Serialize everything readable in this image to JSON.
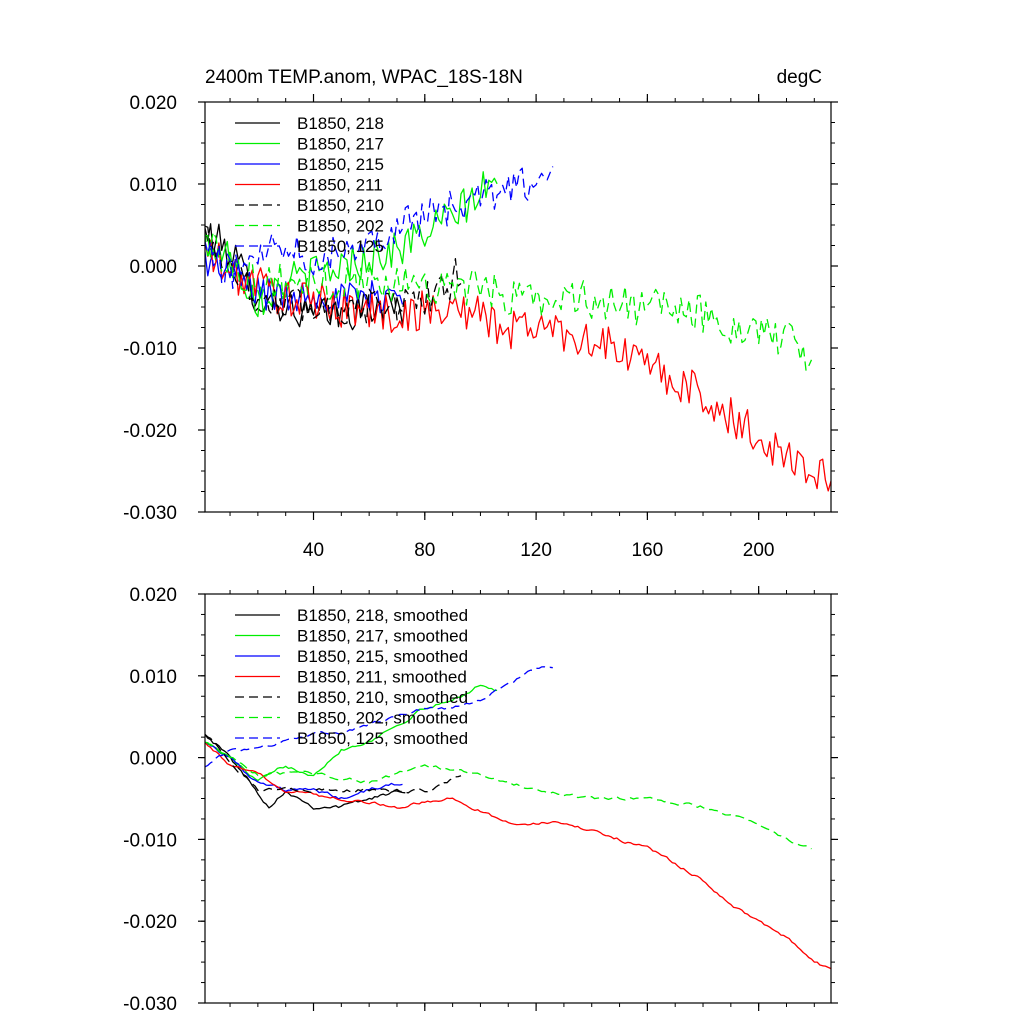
{
  "chart_data": [
    {
      "type": "line",
      "title": "2400m TEMP.anom, WPAC_18S-18N",
      "units": "degC",
      "xlabel": "",
      "ylabel": "",
      "xlim": [
        1,
        226
      ],
      "ylim": [
        -0.03,
        0.02
      ],
      "xticks": [
        40,
        80,
        120,
        160,
        200
      ],
      "xtick_labels": [
        "40",
        "80",
        "120",
        "160",
        "200"
      ],
      "yticks": [
        0.02,
        0.01,
        0.0,
        -0.01,
        -0.02,
        -0.03
      ],
      "ytick_labels": [
        "0.020",
        "0.010",
        "0.000",
        "-0.010",
        "-0.020",
        "-0.030"
      ],
      "legend_position": "top-left",
      "series": [
        {
          "name": "B1850, 218",
          "color": "#000000",
          "dash": "solid",
          "smoothed": false,
          "noise": 0.0022,
          "anchors": [
            [
              1,
              0.004
            ],
            [
              10,
              0.002
            ],
            [
              20,
              -0.004
            ],
            [
              30,
              -0.005
            ],
            [
              40,
              -0.006
            ],
            [
              50,
              -0.006
            ],
            [
              60,
              -0.005
            ],
            [
              73,
              -0.005
            ]
          ]
        },
        {
          "name": "B1850, 217",
          "color": "#00ee00",
          "dash": "solid",
          "smoothed": false,
          "noise": 0.0024,
          "anchors": [
            [
              1,
              0.003
            ],
            [
              10,
              0.001
            ],
            [
              20,
              -0.004
            ],
            [
              30,
              -0.002
            ],
            [
              40,
              -0.001
            ],
            [
              50,
              0.0
            ],
            [
              60,
              0.001
            ],
            [
              70,
              0.002
            ],
            [
              80,
              0.004
            ],
            [
              90,
              0.006
            ],
            [
              100,
              0.009
            ],
            [
              106,
              0.01
            ]
          ]
        },
        {
          "name": "B1850, 215",
          "color": "#0000ff",
          "dash": "solid",
          "smoothed": false,
          "noise": 0.0022,
          "anchors": [
            [
              1,
              0.001
            ],
            [
              10,
              -0.001
            ],
            [
              20,
              -0.003
            ],
            [
              30,
              -0.004
            ],
            [
              40,
              -0.003
            ],
            [
              50,
              -0.004
            ],
            [
              60,
              -0.004
            ],
            [
              72,
              -0.003
            ]
          ]
        },
        {
          "name": "B1850, 211",
          "color": "#ff0000",
          "dash": "solid",
          "smoothed": false,
          "noise": 0.0025,
          "anchors": [
            [
              1,
              0.002
            ],
            [
              10,
              -0.001
            ],
            [
              20,
              -0.002
            ],
            [
              30,
              -0.004
            ],
            [
              50,
              -0.005
            ],
            [
              70,
              -0.006
            ],
            [
              90,
              -0.005
            ],
            [
              100,
              -0.006
            ],
            [
              110,
              -0.008
            ],
            [
              120,
              -0.007
            ],
            [
              140,
              -0.009
            ],
            [
              160,
              -0.012
            ],
            [
              180,
              -0.016
            ],
            [
              200,
              -0.021
            ],
            [
              210,
              -0.023
            ],
            [
              220,
              -0.025
            ],
            [
              226,
              -0.027
            ]
          ]
        },
        {
          "name": "B1850, 210",
          "color": "#000000",
          "dash": "dashed",
          "smoothed": false,
          "noise": 0.0022,
          "anchors": [
            [
              1,
              0.004
            ],
            [
              20,
              -0.004
            ],
            [
              40,
              -0.005
            ],
            [
              60,
              -0.005
            ],
            [
              80,
              -0.004
            ],
            [
              88,
              -0.003
            ],
            [
              93,
              0.0
            ]
          ]
        },
        {
          "name": "B1850, 202",
          "color": "#00ee00",
          "dash": "dashed",
          "smoothed": false,
          "noise": 0.0024,
          "anchors": [
            [
              1,
              0.003
            ],
            [
              20,
              -0.002
            ],
            [
              40,
              -0.002
            ],
            [
              60,
              -0.002
            ],
            [
              80,
              -0.002
            ],
            [
              100,
              -0.003
            ],
            [
              120,
              -0.004
            ],
            [
              140,
              -0.004
            ],
            [
              160,
              -0.005
            ],
            [
              180,
              -0.006
            ],
            [
              200,
              -0.008
            ],
            [
              210,
              -0.009
            ],
            [
              219,
              -0.012
            ]
          ]
        },
        {
          "name": "B1850, 125",
          "color": "#0000ff",
          "dash": "dashed",
          "smoothed": false,
          "noise": 0.0022,
          "anchors": [
            [
              1,
              0.002
            ],
            [
              10,
              -0.001
            ],
            [
              20,
              0.002
            ],
            [
              30,
              0.003
            ],
            [
              40,
              0.001
            ],
            [
              50,
              0.002
            ],
            [
              60,
              0.003
            ],
            [
              70,
              0.005
            ],
            [
              80,
              0.006
            ],
            [
              90,
              0.007
            ],
            [
              100,
              0.008
            ],
            [
              110,
              0.01
            ],
            [
              120,
              0.01
            ],
            [
              126,
              0.011
            ]
          ]
        }
      ]
    },
    {
      "type": "line",
      "title": "",
      "units": "",
      "xlabel": "",
      "ylabel": "",
      "xlim": [
        1,
        226
      ],
      "ylim": [
        -0.03,
        0.02
      ],
      "xticks": [
        40,
        80,
        120,
        160,
        200
      ],
      "xtick_labels": [],
      "yticks": [
        0.02,
        0.01,
        0.0,
        -0.01,
        -0.02,
        -0.03
      ],
      "ytick_labels": [
        "0.020",
        "0.010",
        "0.000",
        "-0.010",
        "-0.020",
        "-0.030"
      ],
      "legend_position": "top-left",
      "series": [
        {
          "name": "B1850, 218, smoothed",
          "color": "#000000",
          "dash": "solid",
          "smoothed": true,
          "noise": 0.0005,
          "anchors": [
            [
              1,
              0.003
            ],
            [
              10,
              0.0
            ],
            [
              24,
              -0.006
            ],
            [
              30,
              -0.004
            ],
            [
              40,
              -0.006
            ],
            [
              50,
              -0.006
            ],
            [
              60,
              -0.005
            ],
            [
              73,
              -0.004
            ]
          ]
        },
        {
          "name": "B1850, 217, smoothed",
          "color": "#00ee00",
          "dash": "solid",
          "smoothed": true,
          "noise": 0.0005,
          "anchors": [
            [
              1,
              0.002
            ],
            [
              10,
              0.0
            ],
            [
              20,
              -0.003
            ],
            [
              30,
              -0.001
            ],
            [
              40,
              -0.002
            ],
            [
              50,
              0.001
            ],
            [
              60,
              0.002
            ],
            [
              70,
              0.004
            ],
            [
              80,
              0.006
            ],
            [
              90,
              0.007
            ],
            [
              100,
              0.009
            ],
            [
              106,
              0.008
            ]
          ]
        },
        {
          "name": "B1850, 215, smoothed",
          "color": "#0000ff",
          "dash": "solid",
          "smoothed": true,
          "noise": 0.0005,
          "anchors": [
            [
              1,
              0.002
            ],
            [
              10,
              0.0
            ],
            [
              20,
              -0.003
            ],
            [
              30,
              -0.004
            ],
            [
              40,
              -0.004
            ],
            [
              50,
              -0.005
            ],
            [
              60,
              -0.004
            ],
            [
              72,
              -0.003
            ]
          ]
        },
        {
          "name": "B1850, 211, smoothed",
          "color": "#ff0000",
          "dash": "solid",
          "smoothed": true,
          "noise": 0.0004,
          "anchors": [
            [
              1,
              0.002
            ],
            [
              10,
              -0.001
            ],
            [
              20,
              -0.002
            ],
            [
              30,
              -0.004
            ],
            [
              50,
              -0.005
            ],
            [
              70,
              -0.006
            ],
            [
              90,
              -0.005
            ],
            [
              110,
              -0.008
            ],
            [
              130,
              -0.008
            ],
            [
              150,
              -0.01
            ],
            [
              160,
              -0.011
            ],
            [
              180,
              -0.015
            ],
            [
              190,
              -0.018
            ],
            [
              200,
              -0.02
            ],
            [
              210,
              -0.022
            ],
            [
              220,
              -0.025
            ],
            [
              226,
              -0.026
            ]
          ]
        },
        {
          "name": "B1850, 210, smoothed",
          "color": "#000000",
          "dash": "dashed",
          "smoothed": true,
          "noise": 0.0005,
          "anchors": [
            [
              1,
              0.003
            ],
            [
              20,
              -0.004
            ],
            [
              40,
              -0.004
            ],
            [
              60,
              -0.004
            ],
            [
              80,
              -0.004
            ],
            [
              88,
              -0.003
            ],
            [
              93,
              -0.002
            ]
          ]
        },
        {
          "name": "B1850, 202, smoothed",
          "color": "#00ee00",
          "dash": "dashed",
          "smoothed": true,
          "noise": 0.0004,
          "anchors": [
            [
              1,
              0.002
            ],
            [
              20,
              -0.002
            ],
            [
              40,
              -0.002
            ],
            [
              60,
              -0.003
            ],
            [
              80,
              -0.001
            ],
            [
              100,
              -0.002
            ],
            [
              120,
              -0.004
            ],
            [
              140,
              -0.005
            ],
            [
              160,
              -0.005
            ],
            [
              180,
              -0.006
            ],
            [
              200,
              -0.008
            ],
            [
              210,
              -0.01
            ],
            [
              219,
              -0.011
            ]
          ]
        },
        {
          "name": "B1850, 125, smoothed",
          "color": "#0000ff",
          "dash": "dashed",
          "smoothed": true,
          "noise": 0.0004,
          "anchors": [
            [
              1,
              -0.001
            ],
            [
              10,
              0.001
            ],
            [
              20,
              0.001
            ],
            [
              30,
              0.002
            ],
            [
              40,
              0.003
            ],
            [
              50,
              0.003
            ],
            [
              60,
              0.004
            ],
            [
              70,
              0.005
            ],
            [
              80,
              0.006
            ],
            [
              90,
              0.006
            ],
            [
              100,
              0.007
            ],
            [
              110,
              0.009
            ],
            [
              120,
              0.011
            ],
            [
              126,
              0.011
            ]
          ]
        }
      ]
    }
  ]
}
